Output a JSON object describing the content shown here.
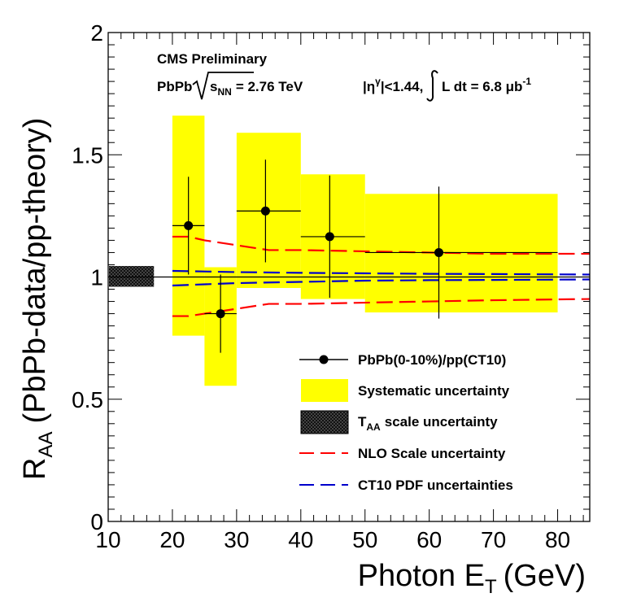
{
  "chart_data": {
    "type": "scatter",
    "xlabel": "Photon E",
    "xlabel_sub": "T",
    "xlabel_unit": "(GeV)",
    "ylabel": "R",
    "ylabel_sub": "AA",
    "ylabel_rest": "(PbPb-data/pp-theory)",
    "xlim": [
      10,
      85
    ],
    "ylim": [
      0,
      2
    ],
    "x_ticks": [
      "10",
      "20",
      "30",
      "40",
      "50",
      "60",
      "70",
      "80"
    ],
    "y_ticks": [
      "0",
      "0.5",
      "1",
      "1.5",
      "2"
    ],
    "grid": false,
    "reference_line": 1,
    "annotations": {
      "experiment": "CMS Preliminary",
      "system": "PbPb",
      "energy_sub": "NN",
      "energy_value": "= 2.76 TeV",
      "eta_cut": "|η",
      "eta_cut_sup": "γ",
      "eta_cut_value": "|<1.44,",
      "lumi": "L dt = 6.8 μb",
      "lumi_sup": "-1"
    },
    "series": [
      {
        "name": "PbPb(0-10%)/pp(CT10)",
        "points": [
          {
            "x": 22.5,
            "xlo": 20,
            "xhi": 25,
            "y": 1.21,
            "err": 0.2
          },
          {
            "x": 27.5,
            "xlo": 25,
            "xhi": 30,
            "y": 0.85,
            "err": 0.16
          },
          {
            "x": 34.5,
            "xlo": 30,
            "xhi": 40,
            "y": 1.27,
            "err": 0.21
          },
          {
            "x": 44.5,
            "xlo": 40,
            "xhi": 50,
            "y": 1.165,
            "err": 0.25
          },
          {
            "x": 61.5,
            "xlo": 50,
            "xhi": 80,
            "y": 1.1,
            "err": 0.27
          }
        ]
      }
    ],
    "systematic_boxes": [
      {
        "xlo": 20,
        "xhi": 25,
        "ylo": 0.76,
        "yhi": 1.66
      },
      {
        "xlo": 25,
        "xhi": 30,
        "ylo": 0.555,
        "yhi": 1.04
      },
      {
        "xlo": 30,
        "xhi": 40,
        "ylo": 0.955,
        "yhi": 1.59
      },
      {
        "xlo": 40,
        "xhi": 50,
        "ylo": 0.91,
        "yhi": 1.42
      },
      {
        "xlo": 50,
        "xhi": 80,
        "ylo": 0.855,
        "yhi": 1.34
      }
    ],
    "taa_box": {
      "xlo": 10,
      "xhi": 17,
      "ylo": 0.96,
      "yhi": 1.045
    },
    "nlo_band": {
      "x": [
        20,
        22.5,
        25,
        30,
        35,
        40,
        50,
        60,
        70,
        85
      ],
      "upper": [
        1.165,
        1.165,
        1.15,
        1.13,
        1.11,
        1.11,
        1.105,
        1.1,
        1.095,
        1.095
      ],
      "lower": [
        0.84,
        0.84,
        0.85,
        0.87,
        0.89,
        0.89,
        0.895,
        0.9,
        0.905,
        0.91
      ]
    },
    "pdf_band": {
      "x": [
        20,
        30,
        40,
        50,
        60,
        70,
        85
      ],
      "upper": [
        1.025,
        1.02,
        1.017,
        1.015,
        1.013,
        1.012,
        1.01
      ],
      "lower": [
        0.965,
        0.975,
        0.98,
        0.985,
        0.987,
        0.988,
        0.99
      ]
    },
    "legend": {
      "placement": "bottom-right",
      "entries": [
        {
          "label": "PbPb(0-10%)/pp(CT10)"
        },
        {
          "label": "Systematic uncertainty"
        },
        {
          "label": "T",
          "label_sub": "AA",
          "label_rest": "scale uncertainty"
        },
        {
          "label": "NLO Scale uncertainty"
        },
        {
          "label": "CT10 PDF uncertainties"
        }
      ]
    },
    "colors": {
      "systematic": "#ffff00",
      "nlo": "#ff0000",
      "pdf": "#0000cc",
      "points": "#000000",
      "taa": "#222222"
    }
  }
}
